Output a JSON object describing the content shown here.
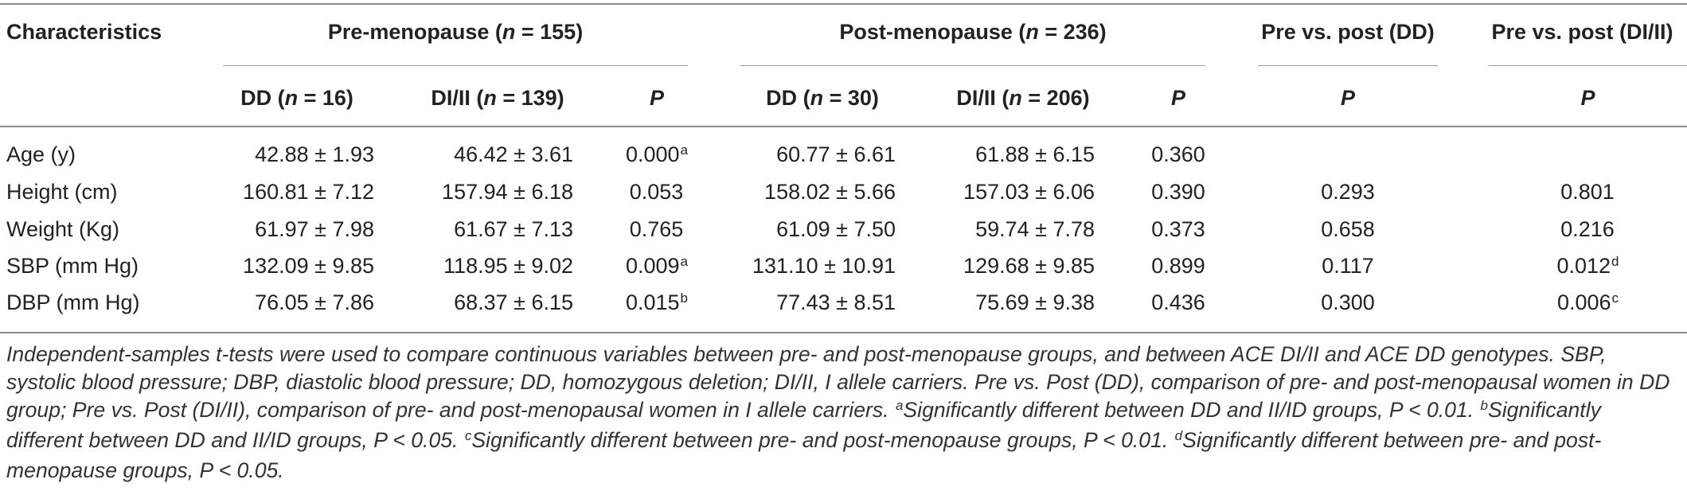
{
  "table": {
    "header": {
      "characteristics": "Characteristics",
      "pre_group_prefix": "Pre-menopause (",
      "pre_group_n": "n",
      "pre_group_suffix": " = 155)",
      "post_group_prefix": "Post-menopause (",
      "post_group_n": "n",
      "post_group_suffix": " = 236)",
      "pre_vs_post_dd": "Pre vs. post (DD)",
      "pre_vs_post_di": "Pre vs. post (DI/II)"
    },
    "subheader": {
      "pre_dd_prefix": "DD (",
      "pre_dd_n": "n",
      "pre_dd_suffix": " = 16)",
      "pre_di_prefix": "DI/II (",
      "pre_di_n": "n",
      "pre_di_suffix": " = 139)",
      "p1": "P",
      "post_dd_prefix": "DD (",
      "post_dd_n": "n",
      "post_dd_suffix": " = 30)",
      "post_di_prefix": "DI/II (",
      "post_di_n": "n",
      "post_di_suffix": " = 206)",
      "p2": "P",
      "p3": "P",
      "p4": "P"
    },
    "rows": [
      {
        "label": "Age (y)",
        "pre_dd": "42.88 ± 1.93",
        "pre_di": "46.42 ± 3.61",
        "p_pre": "0.000",
        "p_pre_sup": "a",
        "post_dd": "60.77 ± 6.61",
        "post_di": "61.88 ± 6.15",
        "p_post": "0.360",
        "p_dd": "",
        "p_di": "",
        "p_di_sup": ""
      },
      {
        "label": "Height (cm)",
        "pre_dd": "160.81 ± 7.12",
        "pre_di": "157.94 ± 6.18",
        "p_pre": "0.053",
        "p_pre_sup": "",
        "post_dd": "158.02 ± 5.66",
        "post_di": "157.03 ± 6.06",
        "p_post": "0.390",
        "p_dd": "0.293",
        "p_di": "0.801",
        "p_di_sup": ""
      },
      {
        "label": "Weight (Kg)",
        "pre_dd": "61.97 ± 7.98",
        "pre_di": "61.67 ± 7.13",
        "p_pre": "0.765",
        "p_pre_sup": "",
        "post_dd": "61.09 ± 7.50",
        "post_di": "59.74 ± 7.78",
        "p_post": "0.373",
        "p_dd": "0.658",
        "p_di": "0.216",
        "p_di_sup": ""
      },
      {
        "label": "SBP (mm Hg)",
        "pre_dd": "132.09 ± 9.85",
        "pre_di": "118.95 ± 9.02",
        "p_pre": "0.009",
        "p_pre_sup": "a",
        "post_dd": "131.10 ± 10.91",
        "post_di": "129.68 ± 9.85",
        "p_post": "0.899",
        "p_dd": "0.117",
        "p_di": "0.012",
        "p_di_sup": "d"
      },
      {
        "label": "DBP (mm Hg)",
        "pre_dd": "76.05 ± 7.86",
        "pre_di": "68.37 ± 6.15",
        "p_pre": "0.015",
        "p_pre_sup": "b",
        "post_dd": "77.43 ± 8.51",
        "post_di": "75.69 ± 9.38",
        "p_post": "0.436",
        "p_dd": "0.300",
        "p_di": "0.006",
        "p_di_sup": "c"
      }
    ],
    "footnote": {
      "main": "Independent-samples t-tests were used to compare continuous variables between pre- and post-menopause groups, and between ACE DI/II and ACE DD genotypes. SBP, systolic blood pressure; DBP, diastolic blood pressure; DD, homozygous deletion; DI/II, I allele carriers. Pre vs. Post (DD), comparison of pre- and post-menopausal women in DD group; Pre vs. Post (DI/II), comparison of pre- and post-menopausal women in I allele carriers. ",
      "a_mark": "a",
      "a_text": "Significantly different between DD and II/ID groups, P < 0.01. ",
      "b_mark": "b",
      "b_text": "Significantly different between DD and II/ID groups, P < 0.05. ",
      "c_mark": "c",
      "c_text": "Significantly different between pre- and post-menopause groups, P < 0.01. ",
      "d_mark": "d",
      "d_text": "Significantly different between pre- and post-menopause groups, P < 0.05."
    }
  }
}
